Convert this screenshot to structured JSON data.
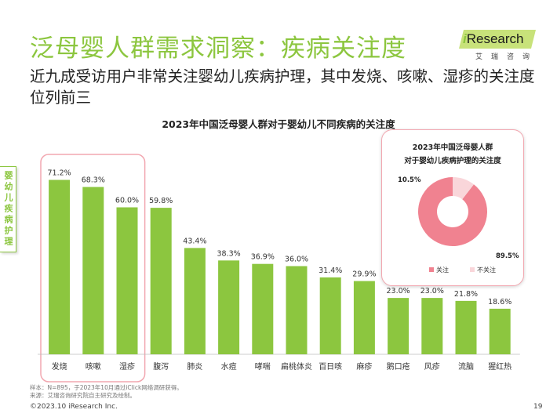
{
  "header": {
    "title": "泛母婴人群需求洞察：疾病关注度",
    "subtitle": "近九成受访用户非常关注婴幼儿疾病护理，其中发烧、咳嗽、湿疹的关注度位列前三"
  },
  "logo": {
    "brand_i": "i",
    "brand_rest": "Research",
    "brand_cn": "艾瑞咨询"
  },
  "side_tag": "婴幼儿疾病护理",
  "colors": {
    "accent": "#8cc63f",
    "bar": "#8cc63f",
    "highlight_border": "#f2a7b0",
    "pie_main": "#f08290",
    "pie_minor": "#f9d6da"
  },
  "chart_data": [
    {
      "type": "bar",
      "title": "2023年中国泛母婴人群对于婴幼儿不同疾病的关注度",
      "categories": [
        "发烧",
        "咳嗽",
        "湿疹",
        "腹泻",
        "肺炎",
        "水痘",
        "哮喘",
        "扁桃体炎",
        "百日咳",
        "麻疹",
        "鹅口疮",
        "风疹",
        "流脑",
        "猩红热"
      ],
      "values": [
        71.2,
        68.3,
        60.0,
        59.8,
        43.4,
        38.3,
        36.9,
        36.0,
        31.4,
        29.9,
        23.0,
        23.0,
        21.8,
        18.6
      ],
      "labels": [
        "71.2%",
        "68.3%",
        "60.0%",
        "59.8%",
        "43.4%",
        "38.3%",
        "36.9%",
        "36.0%",
        "31.4%",
        "29.9%",
        "23.0%",
        "23.0%",
        "21.8%",
        "18.6%"
      ],
      "ylim": [
        0,
        80
      ],
      "highlighted": [
        "发烧",
        "咳嗽",
        "湿疹"
      ],
      "grid": false,
      "legend": "none"
    },
    {
      "type": "pie",
      "title_line1": "2023年中国泛母婴人群",
      "title_line2": "对于婴幼儿疾病护理的关注度",
      "slices": [
        {
          "name": "关注",
          "value": 89.5,
          "label": "89.5%"
        },
        {
          "name": "不关注",
          "value": 10.5,
          "label": "10.5%"
        }
      ],
      "legend": "bottom"
    }
  ],
  "footer": {
    "sample": "样本：N=895，于2023年10月通过iClick网络调研获得。",
    "source": "来源：艾瑞咨询研究院自主研究及绘制。",
    "copyright": "©2023.10 iResearch Inc.",
    "page": "19"
  }
}
